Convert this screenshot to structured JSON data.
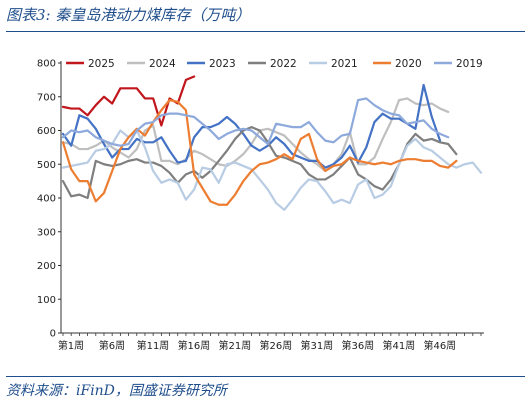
{
  "header": {
    "title": "图表3:  秦皇岛港动力煤库存（万吨）"
  },
  "footer": {
    "source": "资料来源：iFinD，国盛证券研究所"
  },
  "chart_data": {
    "type": "line",
    "title": "图表3:  秦皇岛港动力煤库存（万吨）",
    "xlabel": "",
    "ylabel": "",
    "ylim": [
      0,
      800
    ],
    "yticks": [
      0,
      100,
      200,
      300,
      400,
      500,
      600,
      700,
      800
    ],
    "xlim": [
      1,
      52
    ],
    "xticks": [
      1,
      6,
      11,
      16,
      21,
      26,
      31,
      36,
      41,
      46
    ],
    "xtick_labels": [
      "第1周",
      "第6周",
      "第11周",
      "第16周",
      "第21周",
      "第26周",
      "第31周",
      "第36周",
      "第41周",
      "第46周"
    ],
    "grid": false,
    "legend_position": "top",
    "series": [
      {
        "name": "2025",
        "color": "#c0161c",
        "values": [
          670,
          665,
          665,
          645,
          675,
          700,
          680,
          725,
          725,
          725,
          695,
          695,
          615,
          695,
          680,
          750,
          760
        ]
      },
      {
        "name": "2024",
        "color": "#bfbfbf",
        "values": [
          565,
          560,
          545,
          545,
          555,
          570,
          550,
          535,
          520,
          545,
          600,
          615,
          510,
          510,
          500,
          515,
          540,
          530,
          515,
          500,
          495,
          510,
          530,
          560,
          600,
          605,
          595,
          585,
          560,
          535,
          515,
          500,
          480,
          500,
          530,
          595,
          500,
          500,
          520,
          575,
          625,
          690,
          695,
          680,
          675,
          680,
          665,
          655
        ]
      },
      {
        "name": "2023",
        "color": "#4472c4",
        "values": [
          590,
          555,
          645,
          635,
          605,
          560,
          520,
          545,
          545,
          575,
          565,
          565,
          580,
          540,
          505,
          510,
          580,
          610,
          610,
          620,
          640,
          620,
          590,
          555,
          540,
          555,
          580,
          560,
          530,
          520,
          510,
          510,
          490,
          500,
          520,
          555,
          505,
          550,
          625,
          650,
          635,
          635,
          620,
          605,
          735,
          640,
          570
        ]
      },
      {
        "name": "2022",
        "color": "#7f7f7f",
        "values": [
          450,
          405,
          410,
          400,
          510,
          500,
          495,
          500,
          510,
          515,
          505,
          505,
          495,
          475,
          445,
          470,
          480,
          460,
          480,
          510,
          540,
          575,
          600,
          610,
          600,
          565,
          525,
          520,
          510,
          500,
          470,
          455,
          455,
          470,
          495,
          520,
          470,
          455,
          435,
          425,
          455,
          500,
          560,
          590,
          570,
          575,
          565,
          560,
          530
        ]
      },
      {
        "name": "2021",
        "color": "#b8cce4",
        "values": [
          490,
          495,
          500,
          505,
          540,
          545,
          560,
          600,
          580,
          600,
          550,
          480,
          445,
          455,
          445,
          395,
          425,
          490,
          485,
          445,
          500,
          505,
          495,
          485,
          455,
          425,
          385,
          365,
          395,
          430,
          455,
          450,
          420,
          385,
          395,
          385,
          440,
          455,
          400,
          410,
          435,
          500,
          555,
          575,
          550,
          540,
          520,
          500,
          490,
          500,
          505,
          475
        ]
      },
      {
        "name": "2020",
        "color": "#ed7d31",
        "values": [
          565,
          485,
          450,
          450,
          390,
          415,
          480,
          545,
          580,
          605,
          585,
          625,
          660,
          690,
          685,
          660,
          470,
          430,
          390,
          380,
          380,
          410,
          450,
          480,
          500,
          505,
          515,
          530,
          515,
          575,
          590,
          515,
          480,
          495,
          500,
          520,
          510,
          505,
          500,
          505,
          500,
          510,
          515,
          515,
          510,
          510,
          495,
          490,
          510
        ]
      },
      {
        "name": "2019",
        "color": "#8ea9db",
        "values": [
          580,
          600,
          595,
          600,
          580,
          570,
          560,
          555,
          560,
          600,
          620,
          625,
          645,
          650,
          650,
          645,
          640,
          620,
          600,
          575,
          590,
          600,
          605,
          600,
          580,
          560,
          620,
          615,
          610,
          610,
          625,
          595,
          570,
          565,
          585,
          590,
          690,
          695,
          675,
          660,
          650,
          645,
          620,
          625,
          630,
          605,
          590,
          580
        ]
      }
    ]
  }
}
